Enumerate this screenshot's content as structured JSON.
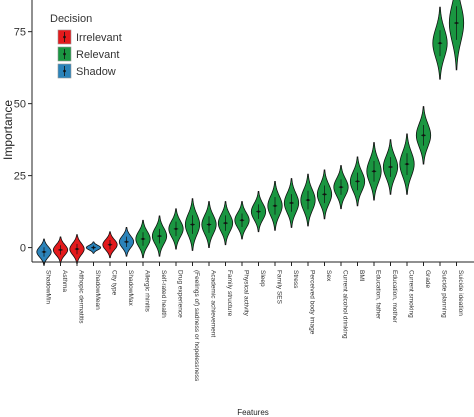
{
  "chart_data": {
    "type": "violin",
    "xlabel": "Features",
    "ylabel": "Importance",
    "ylim": [
      -5,
      86
    ],
    "yticks": [
      0,
      25,
      50,
      75
    ],
    "grid": false,
    "legend_position": "top-left",
    "legend": {
      "title": "Decision",
      "items": [
        {
          "label": "Irrelevant",
          "color": "#e31a1c"
        },
        {
          "label": "Relevant",
          "color": "#1a9641"
        },
        {
          "label": "Shadow",
          "color": "#2b83ba"
        }
      ]
    },
    "categories": [
      "ShadowMin",
      "Asthma",
      "Atthopic dermatitis",
      "ShadowMean",
      "City type",
      "ShadowMax",
      "Allergic rhinitis",
      "Self-rated health",
      "Drug experience",
      "(Feelings of) sadness or hopelessness",
      "Academic achievement",
      "Family structure",
      "Physical activity",
      "Sleep",
      "Family SES",
      "Stress",
      "Perceived body image",
      "Sex",
      "Current alcohol drinking",
      "BMI",
      "Education, father",
      "Education, mother",
      "Current smoking",
      "Grade",
      "Suicide planning",
      "Suicide ideation"
    ],
    "series": [
      {
        "name": "Shadow",
        "values": [
          -1.5,
          null,
          null,
          0.0,
          null,
          2.0,
          null,
          null,
          null,
          null,
          null,
          null,
          null,
          null,
          null,
          null,
          null,
          null,
          null,
          null,
          null,
          null,
          null,
          null,
          null,
          null
        ]
      },
      {
        "name": "Irrelevant",
        "values": [
          null,
          -0.8,
          -0.5,
          null,
          1.0,
          null,
          null,
          null,
          null,
          null,
          null,
          null,
          null,
          null,
          null,
          null,
          null,
          null,
          null,
          null,
          null,
          null,
          null,
          null,
          null,
          null
        ]
      },
      {
        "name": "Relevant",
        "values": [
          null,
          null,
          null,
          null,
          null,
          null,
          3.0,
          4.0,
          6.5,
          8.0,
          8.0,
          8.5,
          9.5,
          12.5,
          14.5,
          15.5,
          16.5,
          18.5,
          21.0,
          23.0,
          26.5,
          28.0,
          29.0,
          39.0,
          71.0,
          78.0
        ]
      }
    ],
    "spreads": [
      1.8,
      1.8,
      2.0,
      0.8,
      1.8,
      2.0,
      2.6,
      2.8,
      2.8,
      3.6,
      3.2,
      3.0,
      2.6,
      2.8,
      3.4,
      3.4,
      3.6,
      3.4,
      3.0,
      3.4,
      4.0,
      3.8,
      4.2,
      4.0,
      5.0,
      6.5
    ]
  }
}
